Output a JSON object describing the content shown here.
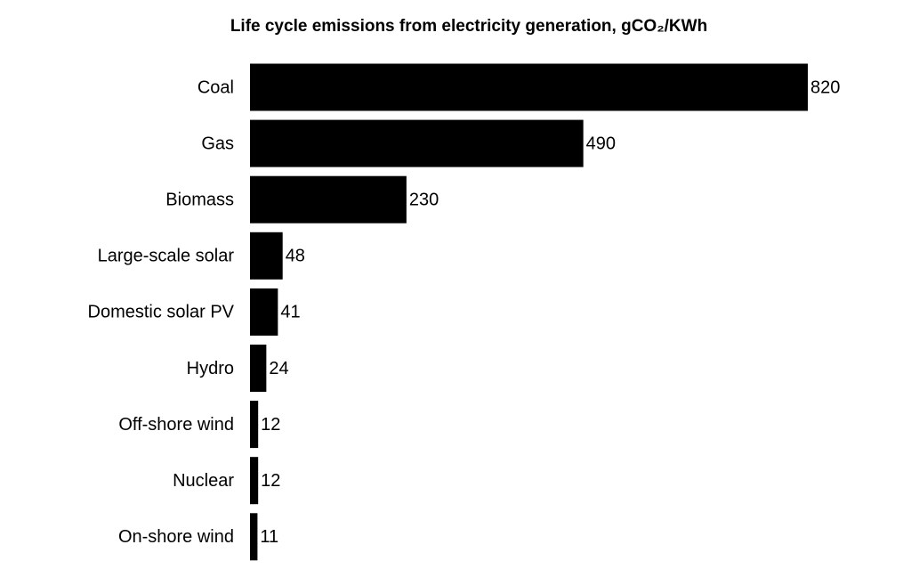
{
  "chart_data": {
    "type": "bar",
    "orientation": "horizontal",
    "title": "Life cycle emissions from electricity generation, gCO₂/KWh",
    "categories": [
      "Coal",
      "Gas",
      "Biomass",
      "Large-scale solar",
      "Domestic solar PV",
      "Hydro",
      "Off-shore wind",
      "Nuclear",
      "On-shore wind"
    ],
    "values": [
      820,
      490,
      230,
      48,
      41,
      24,
      12,
      12,
      11
    ],
    "color": "#000000"
  }
}
